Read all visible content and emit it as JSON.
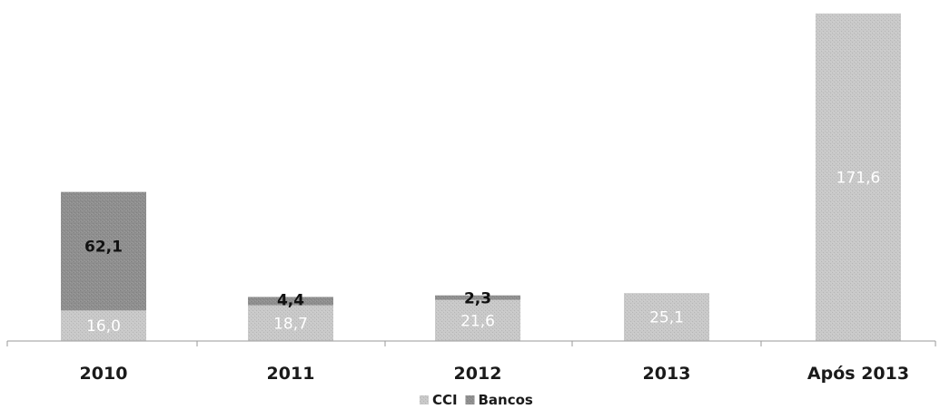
{
  "chart_data": {
    "type": "bar",
    "stacked": true,
    "categories": [
      "2010",
      "2011",
      "2012",
      "2013",
      "Após 2013"
    ],
    "series": [
      {
        "name": "CCI",
        "color": "#c9c9c9",
        "label_color": "#ffffff",
        "values": [
          16.0,
          18.7,
          21.6,
          25.1,
          171.6
        ],
        "labels": [
          "16,0",
          "18,7",
          "21,6",
          "25,1",
          "171,6"
        ]
      },
      {
        "name": "Bancos",
        "color": "#8f8f8f",
        "label_color": "#111111",
        "values": [
          62.1,
          4.4,
          2.3,
          0,
          0
        ],
        "labels": [
          "62,1",
          "4,4",
          "2,3",
          "",
          ""
        ]
      }
    ],
    "title": "",
    "xlabel": "",
    "ylabel": "",
    "ylim": [
      0,
      172
    ],
    "grid": false,
    "legend": "bottom"
  }
}
